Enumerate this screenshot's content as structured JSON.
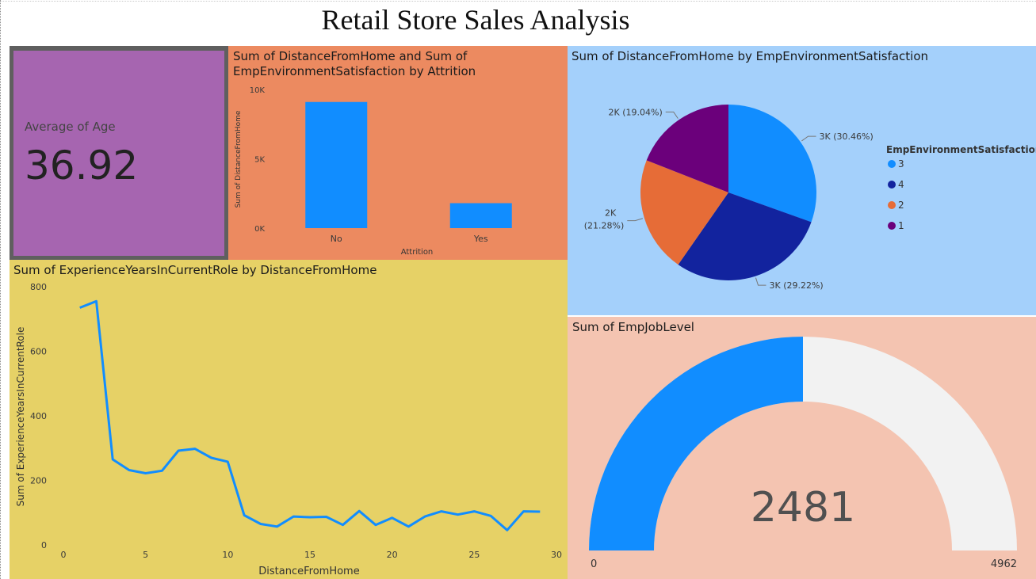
{
  "page": {
    "title": "Retail Store Sales Analysis"
  },
  "kpi": {
    "label": "Average of Age",
    "value": "36.92",
    "bg_color": "#a665b0"
  },
  "chart_data": [
    {
      "type": "bar",
      "title": "Sum of DistanceFromHome and Sum of EmpEnvironmentSatisfaction by Attrition",
      "title_lines": [
        "Sum of DistanceFromHome and Sum of",
        "EmpEnvironmentSatisfaction by Attrition"
      ],
      "xlabel": "Attrition",
      "ylabel": "Sum of DistanceFromHome",
      "categories": [
        "No",
        "Yes"
      ],
      "values": [
        9100,
        1800
      ],
      "ylim": [
        0,
        10000
      ],
      "yticks": [
        0,
        5000,
        10000
      ],
      "ytick_labels": [
        "0K",
        "5K",
        "10K"
      ],
      "color": "#118dff",
      "bg_color": "#ec8a60"
    },
    {
      "type": "pie",
      "title": "Sum of DistanceFromHome by EmpEnvironmentSatisfaction",
      "legend_title": "EmpEnvironmentSatisfaction",
      "legend_position": "right",
      "slices": [
        {
          "name": "3",
          "label": "3K (30.46%)",
          "pct": 30.46,
          "color": "#118dff"
        },
        {
          "name": "4",
          "label": "3K (29.22%)",
          "pct": 29.22,
          "color": "#12239e"
        },
        {
          "name": "2",
          "label_lines": [
            "2K",
            "(21.28%)"
          ],
          "pct": 21.28,
          "color": "#e66c37"
        },
        {
          "name": "1",
          "label": "2K (19.04%)",
          "pct": 19.04,
          "color": "#6b007b"
        }
      ],
      "bg_color": "#a4d0fb"
    },
    {
      "type": "line",
      "title": "Sum of ExperienceYearsInCurrentRole by DistanceFromHome",
      "xlabel": "DistanceFromHome",
      "ylabel": "Sum of ExperienceYearsInCurrentRole",
      "x": [
        1,
        2,
        3,
        4,
        5,
        6,
        7,
        8,
        9,
        10,
        11,
        12,
        13,
        14,
        15,
        16,
        17,
        18,
        19,
        20,
        21,
        22,
        23,
        24,
        25,
        26,
        27,
        28,
        29
      ],
      "y": [
        735,
        755,
        265,
        232,
        222,
        230,
        292,
        298,
        270,
        258,
        92,
        65,
        57,
        88,
        86,
        87,
        62,
        105,
        62,
        84,
        57,
        88,
        104,
        94,
        104,
        90,
        46,
        104,
        103
      ],
      "xlim": [
        -1,
        30
      ],
      "ylim": [
        0,
        800
      ],
      "xticks": [
        0,
        5,
        10,
        15,
        20,
        25,
        30
      ],
      "yticks": [
        0,
        200,
        400,
        600,
        800
      ],
      "color": "#118dff",
      "bg_color": "#e6d166"
    },
    {
      "type": "gauge",
      "title": "Sum of EmpJobLevel",
      "value": 2481,
      "value_label": "2481",
      "min": 0,
      "max": 4962,
      "min_label": "0",
      "max_label": "4962",
      "fill_color": "#118dff",
      "track_color": "#f2f2f2",
      "bg_color": "#f4c4b1"
    }
  ]
}
